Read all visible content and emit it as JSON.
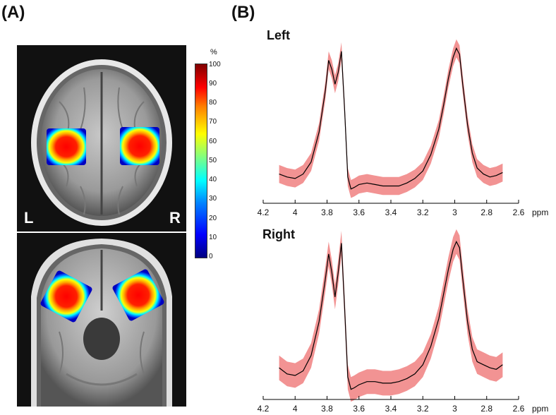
{
  "panel_a": {
    "label": "(A)",
    "left_label": "L",
    "right_label": "R",
    "colorbar": {
      "unit": "%",
      "ticks": [
        "100",
        "90",
        "80",
        "70",
        "60",
        "50",
        "40",
        "30",
        "20",
        "10",
        "0"
      ]
    }
  },
  "panel_b": {
    "label": "(B)",
    "x_unit": "ppm",
    "x_ticks": [
      "4.2",
      "4",
      "3.8",
      "3.6",
      "3.4",
      "3.2",
      "3",
      "2.8",
      "2.6"
    ]
  },
  "chart_data": [
    {
      "type": "line",
      "title": "Left",
      "xlabel": "ppm",
      "xlim": [
        4.2,
        2.6
      ],
      "x_reversed": true,
      "colors": {
        "mean": "#000000",
        "band": "#f08080"
      },
      "x": [
        4.1,
        4.05,
        4.0,
        3.95,
        3.9,
        3.85,
        3.81,
        3.79,
        3.77,
        3.75,
        3.73,
        3.71,
        3.69,
        3.67,
        3.65,
        3.63,
        3.6,
        3.55,
        3.5,
        3.45,
        3.4,
        3.35,
        3.3,
        3.25,
        3.2,
        3.15,
        3.1,
        3.07,
        3.04,
        3.01,
        2.99,
        2.97,
        2.95,
        2.92,
        2.89,
        2.86,
        2.82,
        2.78,
        2.74,
        2.7
      ],
      "mean": [
        0.12,
        0.1,
        0.09,
        0.12,
        0.2,
        0.4,
        0.68,
        0.88,
        0.82,
        0.72,
        0.8,
        0.94,
        0.55,
        0.1,
        0.02,
        0.03,
        0.05,
        0.06,
        0.05,
        0.04,
        0.04,
        0.04,
        0.06,
        0.09,
        0.14,
        0.25,
        0.42,
        0.58,
        0.76,
        0.9,
        0.96,
        0.92,
        0.72,
        0.45,
        0.26,
        0.16,
        0.12,
        0.1,
        0.11,
        0.13
      ],
      "band": 0.06
    },
    {
      "type": "line",
      "title": "Right",
      "xlabel": "ppm",
      "xlim": [
        4.2,
        2.6
      ],
      "x_reversed": true,
      "colors": {
        "mean": "#000000",
        "band": "#f08080"
      },
      "x": [
        4.1,
        4.05,
        4.0,
        3.95,
        3.9,
        3.85,
        3.81,
        3.79,
        3.77,
        3.75,
        3.73,
        3.71,
        3.69,
        3.67,
        3.65,
        3.63,
        3.6,
        3.55,
        3.5,
        3.45,
        3.4,
        3.35,
        3.3,
        3.25,
        3.2,
        3.15,
        3.1,
        3.07,
        3.04,
        3.01,
        2.99,
        2.97,
        2.95,
        2.92,
        2.89,
        2.86,
        2.82,
        2.78,
        2.74,
        2.7
      ],
      "mean": [
        0.16,
        0.12,
        0.11,
        0.14,
        0.24,
        0.46,
        0.74,
        0.9,
        0.78,
        0.62,
        0.78,
        0.97,
        0.55,
        0.1,
        0.02,
        0.03,
        0.05,
        0.07,
        0.07,
        0.06,
        0.06,
        0.07,
        0.09,
        0.12,
        0.18,
        0.3,
        0.48,
        0.64,
        0.8,
        0.93,
        0.98,
        0.94,
        0.74,
        0.46,
        0.28,
        0.2,
        0.18,
        0.16,
        0.15,
        0.18
      ],
      "band": 0.08
    }
  ]
}
